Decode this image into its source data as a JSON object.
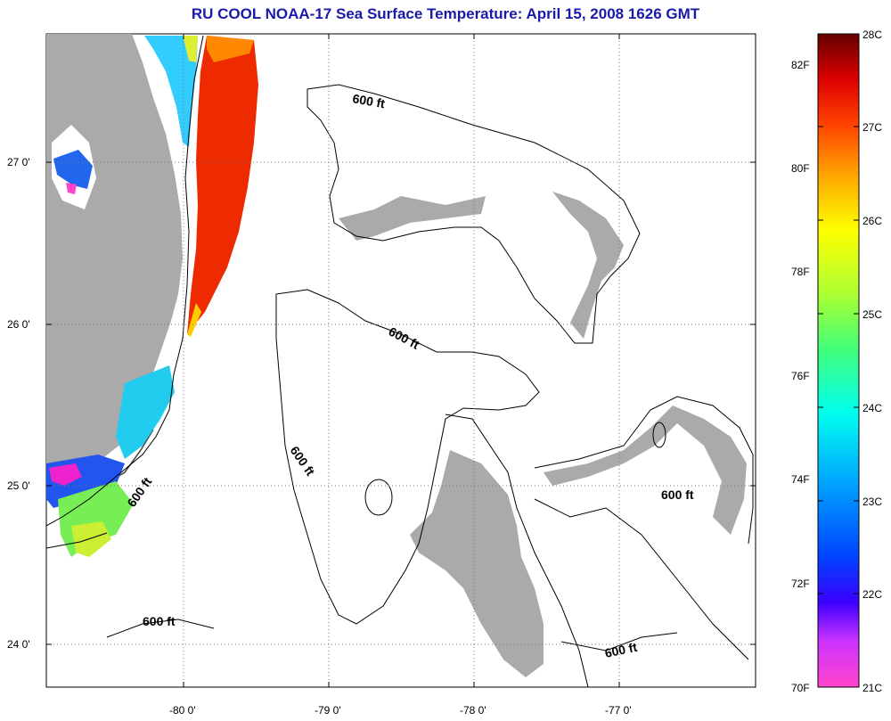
{
  "title": "RU COOL  NOAA-17  Sea Surface Temperature:  April 15, 2008 1626 GMT",
  "lon_labels": [
    "-80 0'",
    "-79 0'",
    "-78 0'",
    "-77 0'"
  ],
  "lat_labels": [
    "27 0'",
    "26 0'",
    "25 0'",
    "24 0'"
  ],
  "contour_label": "600 ft",
  "colorbar": {
    "celsius": [
      "28C",
      "27C",
      "26C",
      "25C",
      "24C",
      "23C",
      "22C",
      "21C"
    ],
    "fahrenheit": [
      "82F",
      "80F",
      "78F",
      "76F",
      "74F",
      "72F",
      "70F"
    ]
  },
  "colors": {
    "land": "#aaaaaa",
    "cloud": "#ffffff",
    "title": "#1a1aa8"
  }
}
